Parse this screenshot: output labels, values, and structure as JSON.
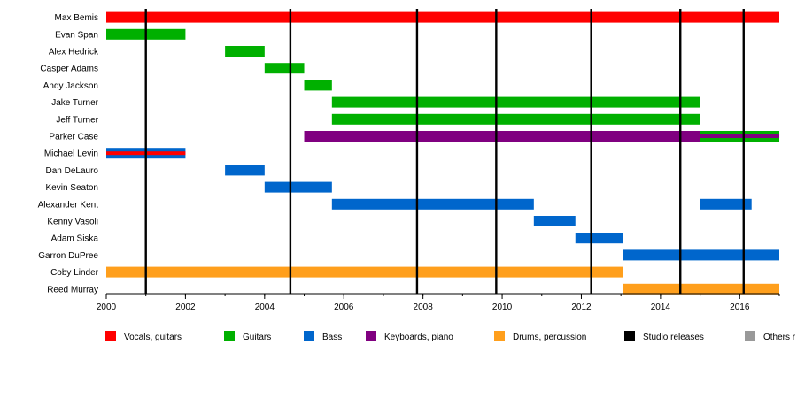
{
  "chart_data": {
    "type": "timeline",
    "title": "",
    "xlim": [
      2000,
      2017
    ],
    "x_ticks": [
      "2000",
      "2002",
      "2004",
      "2006",
      "2008",
      "2010",
      "2012",
      "2014",
      "2016"
    ],
    "studio_releases": [
      2001.0,
      2004.65,
      2007.85,
      2009.85,
      2012.25,
      2014.5,
      2016.1
    ],
    "roles": [
      {
        "key": "vocals",
        "label": "Vocals, guitars",
        "color": "#ff0000"
      },
      {
        "key": "guitars",
        "label": "Guitars",
        "color": "#00b000"
      },
      {
        "key": "bass",
        "label": "Bass",
        "color": "#0066cc"
      },
      {
        "key": "keys",
        "label": "Keyboards, piano",
        "color": "#800080"
      },
      {
        "key": "drums",
        "label": "Drums, percussion",
        "color": "#ff9f1c"
      },
      {
        "key": "studio",
        "label": "Studio releases",
        "color": "#000000"
      },
      {
        "key": "others",
        "label": "Others r",
        "color": "#999999"
      }
    ],
    "members": [
      {
        "name": "Max Bemis",
        "periods": [
          {
            "start": 2000,
            "end": 2017,
            "role": "vocals"
          }
        ]
      },
      {
        "name": "Evan Span",
        "periods": [
          {
            "start": 2000,
            "end": 2002,
            "role": "guitars"
          }
        ]
      },
      {
        "name": "Alex Hedrick",
        "periods": [
          {
            "start": 2003,
            "end": 2004,
            "role": "guitars"
          }
        ]
      },
      {
        "name": "Casper Adams",
        "periods": [
          {
            "start": 2004,
            "end": 2005,
            "role": "guitars"
          }
        ]
      },
      {
        "name": "Andy Jackson",
        "periods": [
          {
            "start": 2005,
            "end": 2005.7,
            "role": "guitars"
          }
        ]
      },
      {
        "name": "Jake Turner",
        "periods": [
          {
            "start": 2005.7,
            "end": 2015,
            "role": "guitars"
          }
        ]
      },
      {
        "name": "Jeff Turner",
        "periods": [
          {
            "start": 2005.7,
            "end": 2015,
            "role": "guitars"
          }
        ]
      },
      {
        "name": "Parker Case",
        "periods": [
          {
            "start": 2005,
            "end": 2015,
            "role": "keys"
          },
          {
            "start": 2015,
            "end": 2017,
            "role": "guitars",
            "secondary": "keys"
          }
        ]
      },
      {
        "name": "Michael Levin",
        "periods": [
          {
            "start": 2000,
            "end": 2002,
            "role": "bass",
            "secondary": "vocals"
          }
        ]
      },
      {
        "name": "Dan DeLauro",
        "periods": [
          {
            "start": 2003,
            "end": 2004,
            "role": "bass"
          }
        ]
      },
      {
        "name": "Kevin Seaton",
        "periods": [
          {
            "start": 2004,
            "end": 2005.7,
            "role": "bass"
          }
        ]
      },
      {
        "name": "Alexander Kent",
        "periods": [
          {
            "start": 2005.7,
            "end": 2010.8,
            "role": "bass"
          },
          {
            "start": 2015,
            "end": 2016.3,
            "role": "bass"
          }
        ]
      },
      {
        "name": "Kenny Vasoli",
        "periods": [
          {
            "start": 2010.8,
            "end": 2011.85,
            "role": "bass"
          }
        ]
      },
      {
        "name": "Adam Siska",
        "periods": [
          {
            "start": 2011.85,
            "end": 2013.05,
            "role": "bass"
          }
        ]
      },
      {
        "name": "Garron DuPree",
        "periods": [
          {
            "start": 2013.05,
            "end": 2017,
            "role": "bass"
          }
        ]
      },
      {
        "name": "Coby Linder",
        "periods": [
          {
            "start": 2000,
            "end": 2013.05,
            "role": "drums"
          }
        ]
      },
      {
        "name": "Reed Murray",
        "periods": [
          {
            "start": 2013.05,
            "end": 2017,
            "role": "drums"
          }
        ]
      }
    ]
  }
}
